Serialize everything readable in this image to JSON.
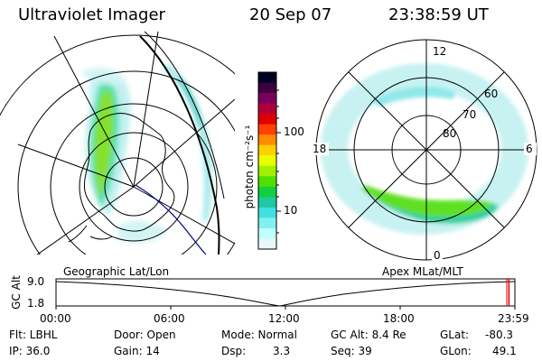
{
  "header": {
    "title": "Ultraviolet Imager",
    "date": "20 Sep 07",
    "time": "23:38:59 UT"
  },
  "colorbar": {
    "unit": "photon cm⁻²s⁻¹",
    "ticks": [
      "100",
      "10"
    ],
    "colors": [
      "#000020",
      "#3a0040",
      "#7a0060",
      "#b0003a",
      "#e00000",
      "#ff4000",
      "#ff8c00",
      "#ffd000",
      "#e8ff00",
      "#a0f000",
      "#50e000",
      "#10d040",
      "#20c8a0",
      "#40e0e0",
      "#80f0f0",
      "#c0ffff",
      "#e8f8f8"
    ]
  },
  "left_panel": {
    "label": "Geographic Lat/Lon"
  },
  "right_panel": {
    "label": "Apex MLat/MLT",
    "mlt_labels": {
      "top": "12",
      "left": "18",
      "right": "6",
      "bottom": "0"
    },
    "lat_labels": [
      "60",
      "70",
      "80"
    ]
  },
  "timeline": {
    "ylabel": "GC Alt",
    "y_ticks": [
      "9.0",
      "1.8"
    ],
    "x_ticks": [
      "00:00",
      "06:00",
      "12:00",
      "18:00",
      "23:59"
    ],
    "current_marker_fraction": 0.987
  },
  "info": {
    "flt": "Flt: LBHL",
    "ip": "IP: 36.0",
    "door": "Door: Open",
    "gain": "Gain: 14",
    "mode": "Mode: Normal",
    "dsp_label": "Dsp:",
    "dsp_value": "3.3",
    "gc_alt": "GC Alt: 8.4 Re",
    "seq": "Seq: 39",
    "glat_label": "GLat:",
    "glat_value": "-80.3",
    "glon_label": "GLon:",
    "glon_value": "49.1"
  }
}
